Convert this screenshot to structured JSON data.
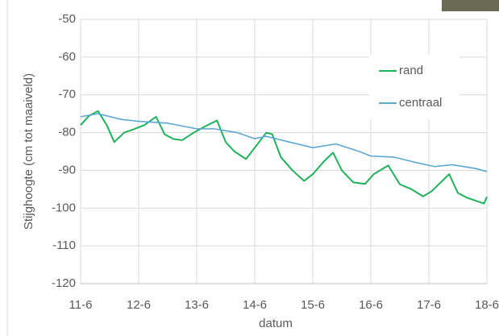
{
  "chart_data": {
    "type": "line",
    "x_label": "datum",
    "y_label": "Stijghoogte (cm tot maaiveld)",
    "xlim": [
      0,
      7
    ],
    "xticks": [
      {
        "value": 0,
        "label": "11-6"
      },
      {
        "value": 1,
        "label": "12-6"
      },
      {
        "value": 2,
        "label": "13-6"
      },
      {
        "value": 3,
        "label": "14-6"
      },
      {
        "value": 4,
        "label": "15-6"
      },
      {
        "value": 5,
        "label": "16-6"
      },
      {
        "value": 6,
        "label": "17-6"
      },
      {
        "value": 7,
        "label": "18-6"
      }
    ],
    "ylim": [
      -120,
      -50
    ],
    "yticks": [
      -120,
      -110,
      -100,
      -90,
      -80,
      -70,
      -60,
      -50
    ],
    "grid": true,
    "legend": "upper right",
    "series": [
      {
        "name": "rand",
        "color": "#1fb25a",
        "x": [
          0,
          0.15,
          0.3,
          0.45,
          0.58,
          0.75,
          0.9,
          1.1,
          1.3,
          1.45,
          1.6,
          1.75,
          1.95,
          2.15,
          2.35,
          2.5,
          2.65,
          2.85,
          3.0,
          3.2,
          3.3,
          3.45,
          3.65,
          3.85,
          4.0,
          4.2,
          4.35,
          4.5,
          4.7,
          4.9,
          5.05,
          5.3,
          5.5,
          5.7,
          5.9,
          6.05,
          6.35,
          6.5,
          6.65,
          6.95,
          7.0
        ],
        "values": [
          -78,
          -75.5,
          -74.3,
          -78,
          -82.5,
          -80,
          -79.2,
          -78,
          -75.8,
          -80.5,
          -81.7,
          -82,
          -80,
          -78.3,
          -76.8,
          -82.5,
          -85,
          -87,
          -84,
          -80,
          -80.4,
          -86.5,
          -90,
          -92.8,
          -91,
          -87.5,
          -85.3,
          -90,
          -93.2,
          -93.6,
          -91,
          -88.7,
          -93.7,
          -95,
          -96.9,
          -95.5,
          -91,
          -96,
          -97.2,
          -98.8,
          -97
        ]
      },
      {
        "name": "centraal",
        "color": "#5ba8d4",
        "x": [
          0,
          0.3,
          0.7,
          1.0,
          1.5,
          2.0,
          2.3,
          2.7,
          3.0,
          3.2,
          3.6,
          4.0,
          4.4,
          4.8,
          5.0,
          5.4,
          5.8,
          6.1,
          6.4,
          6.8,
          7.0
        ],
        "values": [
          -75.8,
          -75,
          -76.5,
          -77,
          -77.5,
          -79,
          -79,
          -80,
          -81.6,
          -81,
          -82.5,
          -84,
          -83,
          -85,
          -86.2,
          -86.5,
          -88,
          -89,
          -88.5,
          -89.5,
          -90.3
        ]
      }
    ]
  }
}
